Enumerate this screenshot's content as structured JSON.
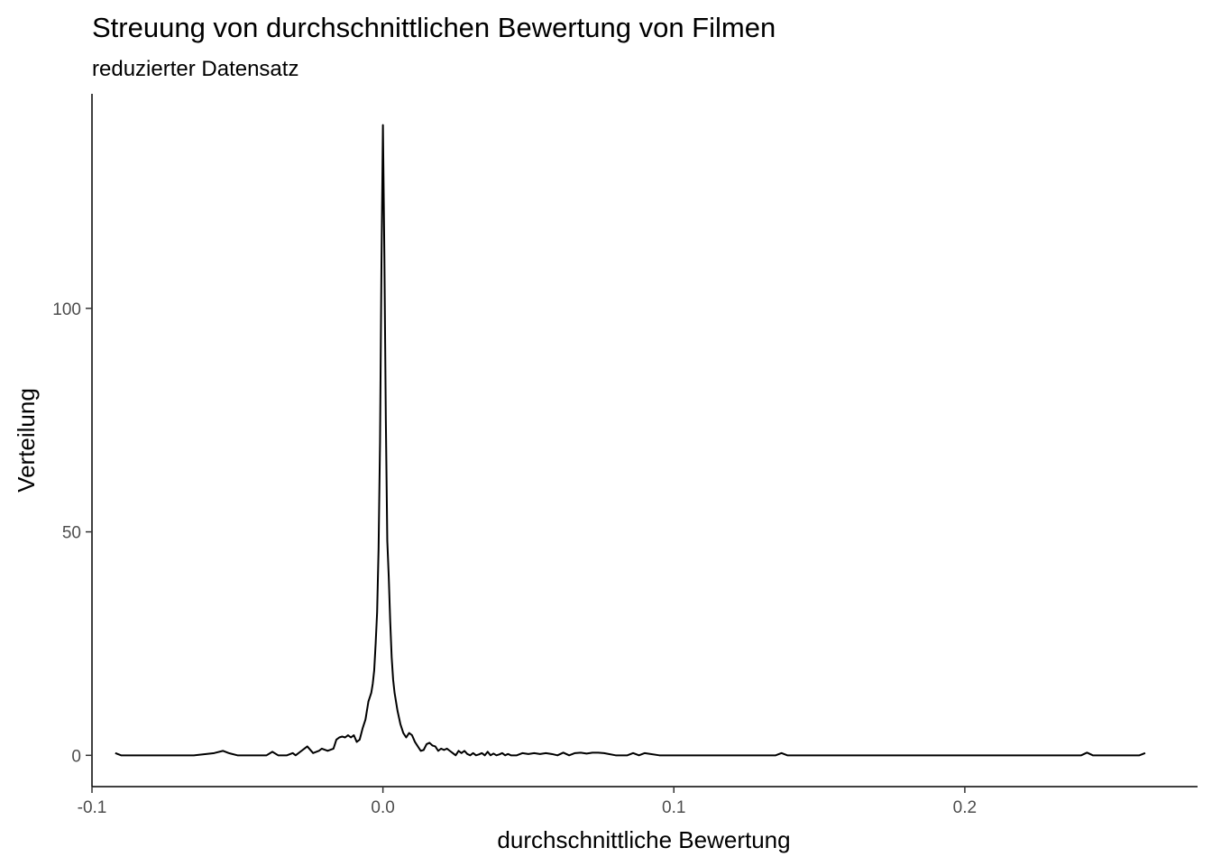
{
  "chart_data": {
    "type": "line",
    "title": "Streuung von durchschnittlichen Bewertung von Filmen",
    "subtitle": "reduzierter Datensatz",
    "xlabel": "durchschnittliche Bewertung",
    "ylabel": "Verteilung",
    "xlim": [
      -0.1,
      0.28
    ],
    "ylim": [
      -7,
      148
    ],
    "x_ticks": [
      -0.1,
      0.0,
      0.1,
      0.2
    ],
    "x_tick_labels": [
      "-0.1",
      "0.0",
      "0.1",
      "0.2"
    ],
    "y_ticks": [
      0,
      50,
      100
    ],
    "y_tick_labels": [
      "0",
      "50",
      "100"
    ],
    "grid": false,
    "legend": "none",
    "series": [
      {
        "color": "#000000",
        "x": [
          -0.092,
          -0.09,
          -0.085,
          -0.075,
          -0.065,
          -0.058,
          -0.055,
          -0.053,
          -0.05,
          -0.045,
          -0.04,
          -0.038,
          -0.036,
          -0.033,
          -0.031,
          -0.03,
          -0.028,
          -0.026,
          -0.024,
          -0.022,
          -0.021,
          -0.019,
          -0.017,
          -0.016,
          -0.015,
          -0.014,
          -0.013,
          -0.012,
          -0.011,
          -0.01,
          -0.009,
          -0.008,
          -0.007,
          -0.006,
          -0.005,
          -0.004,
          -0.0035,
          -0.003,
          -0.0025,
          -0.002,
          -0.0015,
          -0.001,
          -0.0005,
          0.0,
          0.0005,
          0.001,
          0.0015,
          0.002,
          0.0025,
          0.003,
          0.0035,
          0.004,
          0.005,
          0.006,
          0.007,
          0.008,
          0.009,
          0.01,
          0.011,
          0.012,
          0.013,
          0.014,
          0.015,
          0.016,
          0.017,
          0.018,
          0.019,
          0.02,
          0.021,
          0.022,
          0.023,
          0.024,
          0.025,
          0.026,
          0.027,
          0.028,
          0.029,
          0.03,
          0.031,
          0.032,
          0.033,
          0.034,
          0.035,
          0.036,
          0.037,
          0.038,
          0.039,
          0.04,
          0.041,
          0.042,
          0.043,
          0.044,
          0.045,
          0.046,
          0.048,
          0.05,
          0.052,
          0.054,
          0.056,
          0.058,
          0.06,
          0.062,
          0.064,
          0.066,
          0.068,
          0.07,
          0.072,
          0.074,
          0.076,
          0.08,
          0.084,
          0.086,
          0.088,
          0.09,
          0.095,
          0.1,
          0.11,
          0.12,
          0.13,
          0.135,
          0.137,
          0.139,
          0.145,
          0.16,
          0.18,
          0.2,
          0.22,
          0.235,
          0.24,
          0.242,
          0.244,
          0.25,
          0.258,
          0.26,
          0.262
        ],
        "y": [
          0.5,
          0.0,
          0.0,
          0.0,
          0.0,
          0.5,
          1.0,
          0.5,
          0.0,
          0.0,
          0.0,
          0.8,
          0.0,
          0.0,
          0.5,
          0.0,
          1.0,
          2.0,
          0.5,
          1.0,
          1.5,
          1.0,
          1.5,
          3.5,
          4.0,
          4.2,
          4.0,
          4.5,
          4.0,
          4.5,
          3.0,
          3.5,
          6.0,
          8.0,
          12.0,
          14.0,
          16.0,
          19.0,
          25.0,
          32.0,
          46.0,
          70.0,
          110.0,
          141.0,
          112.0,
          75.0,
          48.0,
          40.0,
          30.0,
          22.0,
          17.0,
          14.0,
          10.0,
          7.0,
          5.0,
          4.0,
          5.0,
          4.5,
          3.0,
          2.0,
          1.0,
          1.2,
          2.5,
          2.8,
          2.2,
          2.0,
          1.0,
          1.5,
          1.2,
          1.5,
          1.0,
          0.5,
          0.0,
          1.0,
          0.5,
          1.0,
          0.3,
          0.0,
          0.5,
          0.0,
          0.2,
          0.5,
          0.0,
          0.8,
          0.0,
          0.4,
          0.0,
          0.2,
          0.5,
          0.0,
          0.3,
          0.0,
          0.0,
          0.0,
          0.5,
          0.3,
          0.5,
          0.3,
          0.5,
          0.3,
          0.0,
          0.6,
          0.0,
          0.5,
          0.6,
          0.4,
          0.6,
          0.6,
          0.5,
          0.0,
          0.0,
          0.5,
          0.0,
          0.5,
          0.0,
          0.0,
          0.0,
          0.0,
          0.0,
          0.0,
          0.5,
          0.0,
          0.0,
          0.0,
          0.0,
          0.0,
          0.0,
          0.0,
          0.0,
          0.6,
          0.0,
          0.0,
          0.0,
          0.0,
          0.5
        ]
      }
    ]
  }
}
